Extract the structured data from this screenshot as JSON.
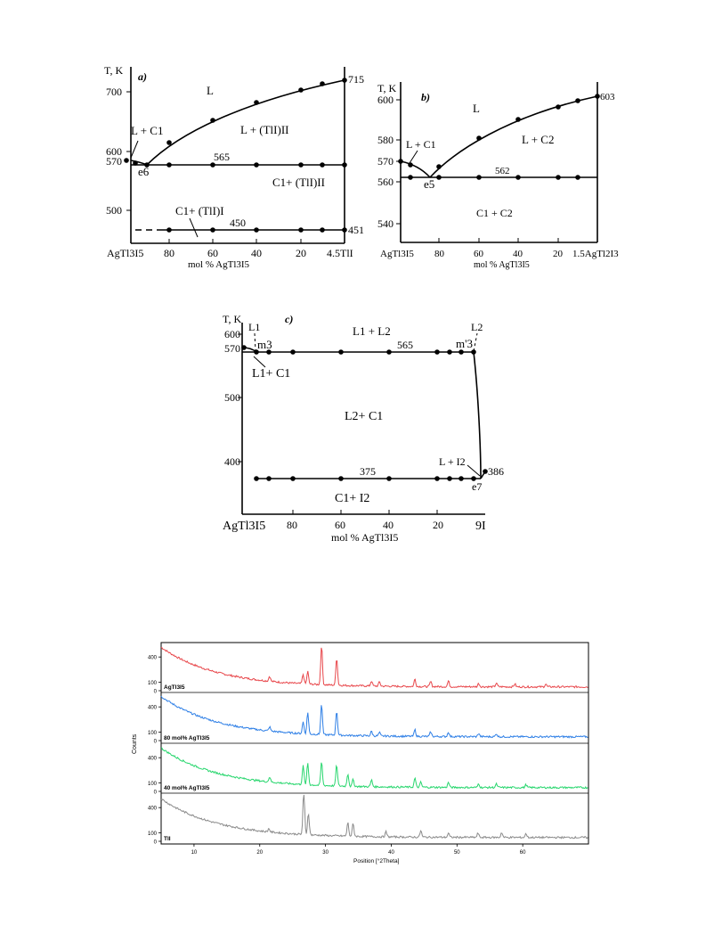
{
  "figure_a": {
    "panel": "a)",
    "y_title": "T, K",
    "y_ticks": [
      "700",
      "600",
      "570",
      "500"
    ],
    "x_ticks": [
      "AgTl3I5",
      "80",
      "60",
      "40",
      "20",
      "4.5TlI"
    ],
    "x_label": "mol % AgTl3I5",
    "labels": {
      "L": "L",
      "L_C1": "L + C1",
      "L_TlI": "L + (TlI)II",
      "C1_TlI_II": "C1+ (TlI)II",
      "C1_TlI_I": "C1+ (TlI)I",
      "e": "e6",
      "t715": "715",
      "t565": "565",
      "t450": "450",
      "t451": "451"
    }
  },
  "figure_b": {
    "panel": "b)",
    "y_title": "T, K",
    "y_ticks": [
      "600",
      "580",
      "570",
      "560",
      "540"
    ],
    "x_ticks": [
      "AgTl3I5",
      "80",
      "60",
      "40",
      "20",
      "1.5AgTl2I3"
    ],
    "x_label": "mol % AgTl3I5",
    "labels": {
      "L": "L",
      "L_C1": "L + C1",
      "L_C2": "L + C2",
      "C1_C2": "C1 + C2",
      "e": "e5",
      "t603": "603",
      "t562": "562"
    }
  },
  "figure_c": {
    "panel": "c)",
    "y_title": "T, K",
    "y_ticks": [
      "600",
      "570",
      "500",
      "400"
    ],
    "x_ticks": [
      "AgTl3I5",
      "80",
      "60",
      "40",
      "20",
      "9I"
    ],
    "x_label": "mol % AgTl3I5",
    "labels": {
      "L1": "L1",
      "L2": "L2",
      "m3": "m3",
      "m3p": "m'3",
      "L1_L2": "L1 + L2",
      "L1_C1": "L1+ C1",
      "L2_C1": "L2+ C1",
      "L_I2": "L + I2",
      "C1_I2": "C1+ I2",
      "e": "e7",
      "t565": "565",
      "t375": "375",
      "t386": "386"
    }
  },
  "xrd": {
    "y_axis_label": "Counts",
    "x_axis_label": "Position [°2Theta]",
    "x_ticks": [
      "10",
      "20",
      "30",
      "40",
      "50",
      "60"
    ],
    "y_ticks": [
      "400",
      "100",
      "0"
    ],
    "panels": [
      {
        "name": "AgTl3I5",
        "color": "#e8474b"
      },
      {
        "name": "80 mol% AgTl3I5",
        "color": "#2e7fe6"
      },
      {
        "name": "40 mol% AgTl3I5",
        "color": "#27d66d"
      },
      {
        "name": "TlI",
        "color": "#8a8a8a"
      }
    ]
  },
  "chart_data": {
    "type": "line",
    "xlabel": "Position [°2Theta]",
    "ylabel": "Counts",
    "xlim": [
      5,
      70
    ],
    "ylim": [
      0,
      550
    ],
    "series": [
      {
        "name": "AgTl3I5",
        "peaks_2theta": [
          21.5,
          26.6,
          27.3,
          29.4,
          31.7,
          37.0,
          38.2,
          43.6,
          46.0,
          48.7,
          53.3,
          56.0,
          58.8,
          63.5
        ]
      },
      {
        "name": "80 mol% AgTl3I5",
        "peaks_2theta": [
          21.5,
          26.6,
          27.3,
          29.4,
          31.7,
          37.0,
          38.2,
          43.6,
          46.0,
          48.7,
          53.3,
          56.0
        ]
      },
      {
        "name": "40 mol% AgTl3I5",
        "peaks_2theta": [
          21.5,
          26.6,
          27.3,
          29.4,
          31.7,
          33.4,
          34.2,
          37.0,
          43.6,
          44.5,
          48.7,
          53.3,
          56.0,
          60.5
        ]
      },
      {
        "name": "TlI",
        "peaks_2theta": [
          21.4,
          26.7,
          27.4,
          33.4,
          34.2,
          39.2,
          44.5,
          48.7,
          53.2,
          56.8,
          60.5
        ]
      }
    ]
  }
}
